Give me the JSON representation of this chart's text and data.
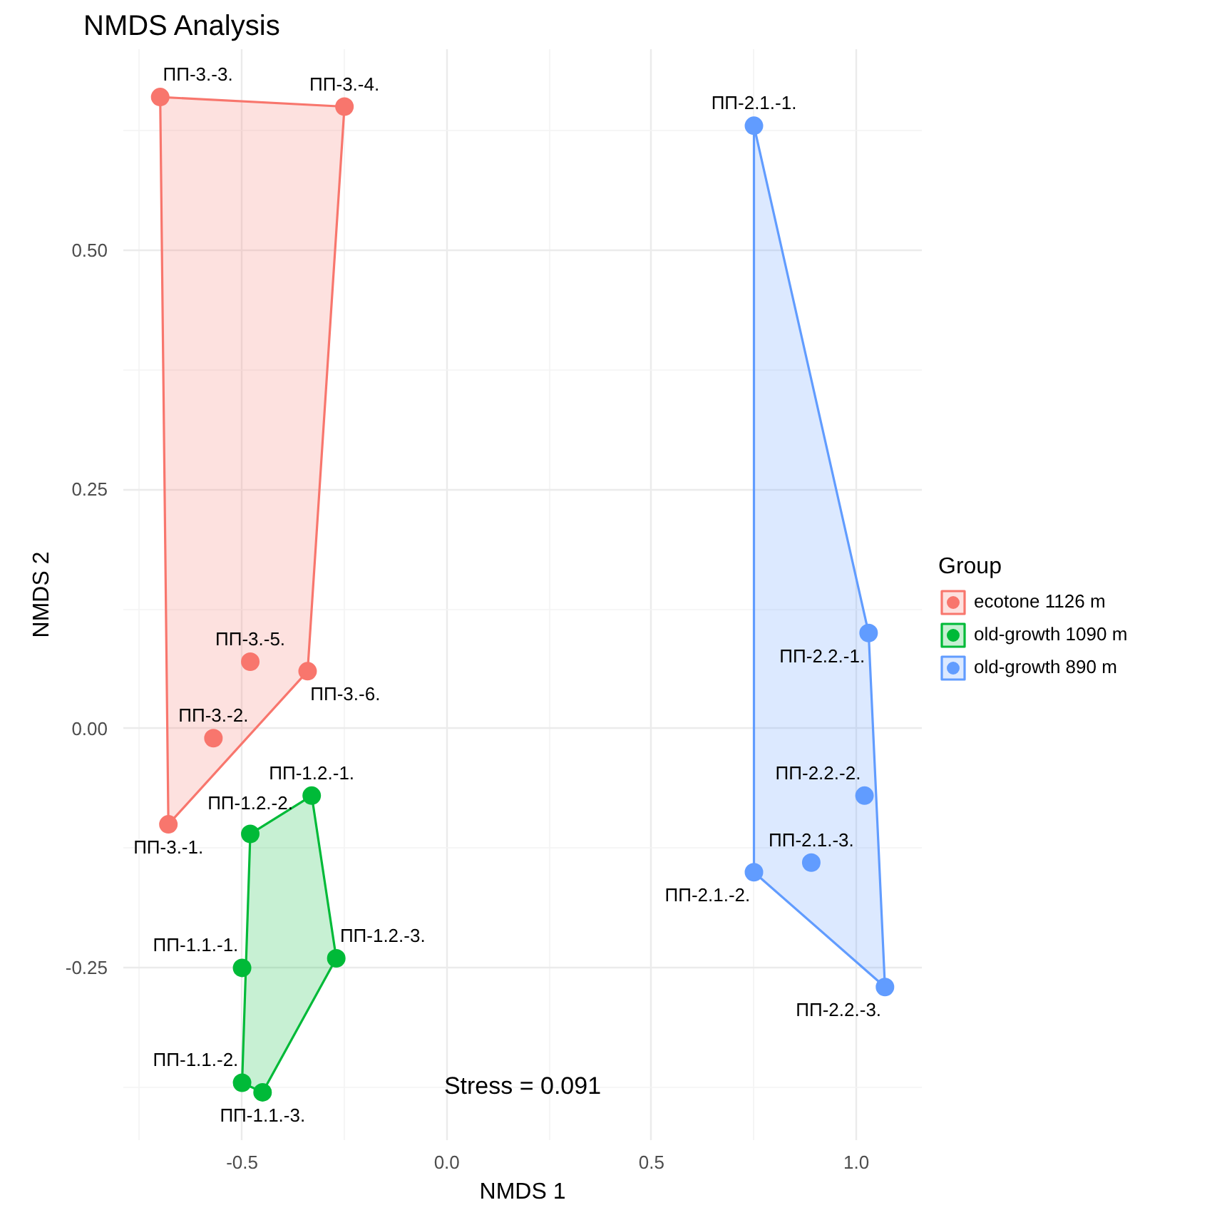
{
  "chart_data": {
    "type": "scatter",
    "title": "NMDS Analysis",
    "xlabel": "NMDS 1",
    "ylabel": "NMDS 2",
    "legend_title": "Group",
    "legend": "right",
    "grid": true,
    "marker": "circle",
    "xlim": [
      -0.79,
      1.16
    ],
    "ylim": [
      -0.43,
      0.71
    ],
    "xticks": [
      -0.5,
      {
        "value": 0,
        "label": "0.0"
      },
      0.5,
      {
        "value": 1,
        "label": "1.0"
      }
    ],
    "yticks": [
      -0.25,
      {
        "value": 0,
        "label": "0.00"
      },
      0.25,
      {
        "value": 0.5,
        "label": "0.50"
      }
    ],
    "series": [
      {
        "name": "ecotone 1126 m",
        "color": "#f8766d",
        "x": [
          -0.7,
          -0.25,
          -0.48,
          -0.34,
          -0.57,
          -0.68
        ],
        "values": [
          0.66,
          0.65,
          0.07,
          0.06,
          -0.01,
          -0.1
        ]
      },
      {
        "name": "old-growth 1090 m",
        "color": "#00ba38",
        "x": [
          -0.33,
          -0.48,
          -0.27,
          -0.5,
          -0.5,
          -0.45
        ],
        "values": [
          -0.07,
          -0.11,
          -0.24,
          -0.25,
          -0.37,
          -0.38
        ]
      },
      {
        "name": "old-growth 890 m",
        "color": "#619cff",
        "x": [
          0.75,
          1.03,
          1.02,
          0.89,
          0.75,
          1.07
        ],
        "values": [
          0.63,
          0.1,
          -0.07,
          -0.14,
          -0.15,
          -0.27
        ]
      }
    ],
    "annotations": [
      {
        "text": "ПП-3.-3.",
        "x": -0.7,
        "y": 0.66
      },
      {
        "text": "ПП-3.-4.",
        "x": -0.25,
        "y": 0.65
      },
      {
        "text": "ПП-3.-5.",
        "x": -0.48,
        "y": 0.07
      },
      {
        "text": "ПП-3.-6.",
        "x": -0.34,
        "y": 0.06
      },
      {
        "text": "ПП-3.-2.",
        "x": -0.57,
        "y": -0.01
      },
      {
        "text": "ПП-3.-1.",
        "x": -0.68,
        "y": -0.1
      },
      {
        "text": "ПП-1.2.-1.",
        "x": -0.33,
        "y": -0.07
      },
      {
        "text": "ПП-1.2.-2.",
        "x": -0.48,
        "y": -0.11
      },
      {
        "text": "ПП-1.2.-3.",
        "x": -0.27,
        "y": -0.24
      },
      {
        "text": "ПП-1.1.-1.",
        "x": -0.5,
        "y": -0.25
      },
      {
        "text": "ПП-1.1.-2.",
        "x": -0.5,
        "y": -0.37
      },
      {
        "text": "ПП-1.1.-3.",
        "x": -0.45,
        "y": -0.38
      },
      {
        "text": "ПП-2.1.-1.",
        "x": 0.75,
        "y": 0.63
      },
      {
        "text": "ПП-2.2.-1.",
        "x": 1.03,
        "y": 0.1
      },
      {
        "text": "ПП-2.2.-2.",
        "x": 1.02,
        "y": -0.07
      },
      {
        "text": "ПП-2.1.-3.",
        "x": 0.89,
        "y": -0.14
      },
      {
        "text": "ПП-2.1.-2.",
        "x": 0.75,
        "y": -0.15
      },
      {
        "text": "ПП-2.2.-3.",
        "x": 1.07,
        "y": -0.27
      },
      "Stress = 0.091"
    ]
  }
}
